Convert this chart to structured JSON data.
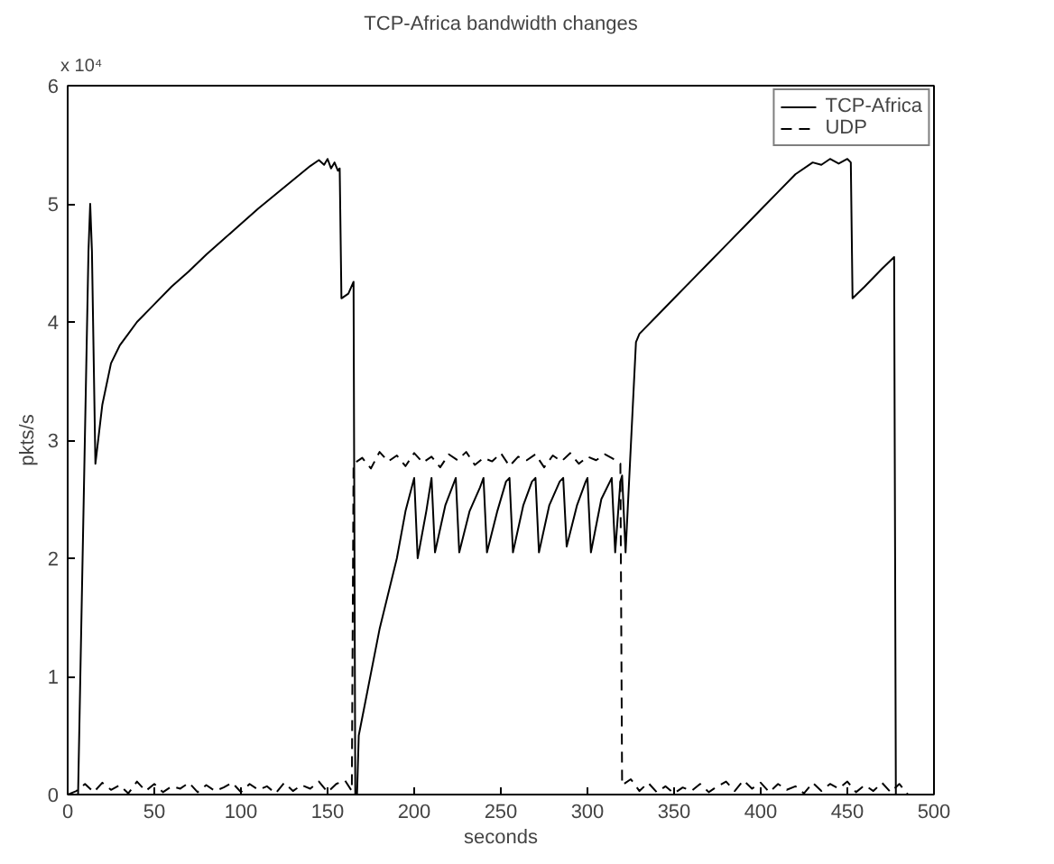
{
  "chart_data": {
    "type": "line",
    "title": "TCP-Africa bandwidth changes",
    "xlabel": "seconds",
    "ylabel": "pkts/s",
    "annotations": [
      "x 10⁴"
    ],
    "xlim": [
      0,
      500
    ],
    "xticks": [
      0,
      50,
      100,
      150,
      200,
      250,
      300,
      350,
      400,
      450,
      500
    ],
    "ylim": [
      0,
      6
    ],
    "yticks": [
      0,
      1,
      2,
      3,
      4,
      5,
      6
    ],
    "grid": false,
    "legend": "top right",
    "marker": "none",
    "series": [
      {
        "name": "TCP-Africa",
        "color": "#000000",
        "line_style": "solid",
        "x": [
          0,
          6,
          12,
          13,
          14,
          16,
          20,
          25,
          30,
          35,
          40,
          50,
          60,
          70,
          80,
          90,
          100,
          110,
          120,
          130,
          140,
          145,
          148,
          150,
          152,
          154,
          156,
          157,
          158,
          162,
          165,
          166,
          167,
          168,
          172,
          180,
          190,
          195,
          200,
          202,
          207,
          210,
          212,
          218,
          224,
          226,
          232,
          238,
          240,
          242,
          248,
          253,
          255,
          257,
          263,
          268,
          270,
          272,
          278,
          284,
          286,
          288,
          294,
          299,
          300,
          302,
          308,
          313,
          314,
          316,
          319,
          320,
          322,
          328,
          330,
          340,
          350,
          360,
          370,
          380,
          390,
          400,
          410,
          420,
          430,
          435,
          440,
          445,
          450,
          452,
          453,
          460,
          470,
          477,
          478
        ],
        "values": [
          0,
          0,
          4.6,
          5.0,
          4.6,
          2.8,
          3.3,
          3.65,
          3.8,
          3.9,
          4.0,
          4.15,
          4.3,
          4.43,
          4.57,
          4.7,
          4.83,
          4.96,
          5.08,
          5.2,
          5.32,
          5.37,
          5.33,
          5.38,
          5.3,
          5.35,
          5.28,
          5.3,
          4.2,
          4.24,
          4.34,
          0,
          0,
          0.5,
          0.8,
          1.4,
          2.0,
          2.4,
          2.68,
          2.0,
          2.4,
          2.68,
          2.05,
          2.45,
          2.68,
          2.05,
          2.4,
          2.6,
          2.68,
          2.05,
          2.4,
          2.65,
          2.68,
          2.05,
          2.45,
          2.65,
          2.68,
          2.05,
          2.45,
          2.65,
          2.68,
          2.1,
          2.45,
          2.65,
          2.68,
          2.05,
          2.5,
          2.65,
          2.68,
          2.05,
          2.65,
          2.7,
          2.05,
          3.83,
          3.9,
          4.05,
          4.2,
          4.35,
          4.5,
          4.65,
          4.8,
          4.95,
          5.1,
          5.25,
          5.35,
          5.33,
          5.38,
          5.34,
          5.38,
          5.35,
          4.2,
          4.3,
          4.45,
          4.55,
          0
        ]
      },
      {
        "name": "UDP",
        "color": "#000000",
        "line_style": "dashed",
        "x": [
          0,
          5,
          10,
          15,
          20,
          25,
          30,
          35,
          40,
          45,
          50,
          55,
          60,
          65,
          70,
          75,
          80,
          85,
          90,
          95,
          100,
          105,
          110,
          115,
          120,
          125,
          130,
          135,
          140,
          145,
          150,
          155,
          160,
          164,
          165,
          170,
          175,
          180,
          185,
          190,
          195,
          200,
          205,
          210,
          215,
          220,
          225,
          230,
          235,
          240,
          245,
          250,
          255,
          260,
          265,
          270,
          275,
          280,
          285,
          290,
          295,
          300,
          305,
          310,
          315,
          319,
          320,
          325,
          330,
          335,
          340,
          345,
          350,
          355,
          360,
          365,
          370,
          375,
          380,
          385,
          390,
          395,
          400,
          405,
          410,
          415,
          420,
          425,
          430,
          435,
          440,
          445,
          450,
          455,
          460,
          465,
          470,
          475,
          480,
          485
        ],
        "values": [
          0,
          0.03,
          0.09,
          0.02,
          0.1,
          0.04,
          0.08,
          0.01,
          0.11,
          0.03,
          0.09,
          0.02,
          0.07,
          0.05,
          0.1,
          0.02,
          0.08,
          0.03,
          0.06,
          0.1,
          0.02,
          0.09,
          0.04,
          0.07,
          0.01,
          0.1,
          0.03,
          0.08,
          0.05,
          0.11,
          0.02,
          0.09,
          0.12,
          0.03,
          2.8,
          2.85,
          2.76,
          2.9,
          2.82,
          2.87,
          2.78,
          2.89,
          2.81,
          2.86,
          2.77,
          2.88,
          2.83,
          2.9,
          2.79,
          2.85,
          2.82,
          2.89,
          2.78,
          2.86,
          2.83,
          2.88,
          2.77,
          2.87,
          2.82,
          2.89,
          2.8,
          2.86,
          2.83,
          2.88,
          2.84,
          2.8,
          0.08,
          0.13,
          0.03,
          0.1,
          0.02,
          0.07,
          0.01,
          0.06,
          0.03,
          0.09,
          0.02,
          0.07,
          0.11,
          0.03,
          0.12,
          0.05,
          0.1,
          0.02,
          0.09,
          0.04,
          0.07,
          0.01,
          0.1,
          0.03,
          0.09,
          0.05,
          0.11,
          0.02,
          0.08,
          0.03,
          0.1,
          0.02,
          0.09,
          0
        ]
      }
    ]
  }
}
